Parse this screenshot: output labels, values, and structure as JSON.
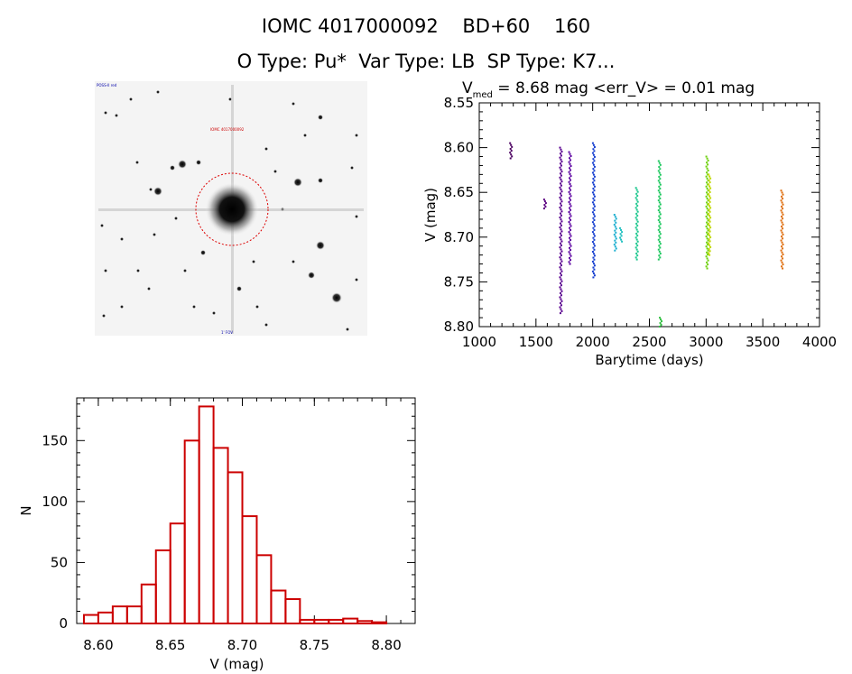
{
  "header": {
    "title_line1": "IOMC 4017000092    BD+60    160",
    "title_line2": "O Type: Pu*  Var Type: LB  SP Type: K7..."
  },
  "image_panel": {
    "top_left_label": "POSS-II red",
    "marker_label": "IOMC 4017000092",
    "bottom_label": "1' FOV"
  },
  "lightcurve_title": {
    "prefix": "V",
    "subscript": "med",
    "rest": " = 8.68 mag <err_V> = 0.01 mag"
  },
  "chart_data": [
    {
      "type": "scatter",
      "xlabel": "Barytime (days)",
      "ylabel": "V (mag)",
      "xlim": [
        1000,
        4000
      ],
      "ylim": [
        8.8,
        8.55
      ],
      "y_inverted": true,
      "xticks": [
        1000,
        1500,
        2000,
        2500,
        3000,
        3500,
        4000
      ],
      "yticks": [
        8.55,
        8.6,
        8.65,
        8.7,
        8.75,
        8.8
      ],
      "grid": false,
      "groups": [
        {
          "x": 1280,
          "ymin": 8.595,
          "ymax": 8.612,
          "color": "#4b0060"
        },
        {
          "x": 1580,
          "ymin": 8.658,
          "ymax": 8.668,
          "color": "#5a0080"
        },
        {
          "x": 1720,
          "ymin": 8.6,
          "ymax": 8.785,
          "color": "#5a0090"
        },
        {
          "x": 1800,
          "ymin": 8.605,
          "ymax": 8.73,
          "color": "#5a00a0"
        },
        {
          "x": 2010,
          "ymin": 8.595,
          "ymax": 8.745,
          "color": "#1840d0"
        },
        {
          "x": 2200,
          "ymin": 8.675,
          "ymax": 8.715,
          "color": "#20b0d0"
        },
        {
          "x": 2250,
          "ymin": 8.69,
          "ymax": 8.705,
          "color": "#20c0c0"
        },
        {
          "x": 2390,
          "ymin": 8.645,
          "ymax": 8.725,
          "color": "#20c890"
        },
        {
          "x": 2590,
          "ymin": 8.615,
          "ymax": 8.725,
          "color": "#20c860"
        },
        {
          "x": 2600,
          "ymin": 8.79,
          "ymax": 8.8,
          "color": "#30c040"
        },
        {
          "x": 3010,
          "ymin": 8.61,
          "ymax": 8.735,
          "color": "#70d010"
        },
        {
          "x": 3030,
          "ymin": 8.63,
          "ymax": 8.72,
          "color": "#c0d800"
        },
        {
          "x": 3670,
          "ymin": 8.648,
          "ymax": 8.735,
          "color": "#e07010"
        }
      ]
    },
    {
      "type": "bar",
      "xlabel": "V (mag)",
      "ylabel": "N",
      "xlim": [
        8.585,
        8.82
      ],
      "ylim": [
        0,
        185
      ],
      "xticks": [
        8.6,
        8.65,
        8.7,
        8.75,
        8.8
      ],
      "yticks": [
        0,
        50,
        100,
        150
      ],
      "bin_width": 0.01,
      "bin_starts": [
        8.59,
        8.6,
        8.61,
        8.62,
        8.63,
        8.64,
        8.65,
        8.66,
        8.67,
        8.68,
        8.69,
        8.7,
        8.71,
        8.72,
        8.73,
        8.74,
        8.75,
        8.76,
        8.77,
        8.78,
        8.79
      ],
      "counts": [
        7,
        9,
        14,
        14,
        32,
        60,
        82,
        150,
        178,
        144,
        124,
        88,
        56,
        27,
        20,
        3,
        3,
        3,
        4,
        2,
        1
      ],
      "bar_color": "#cc0000"
    }
  ]
}
